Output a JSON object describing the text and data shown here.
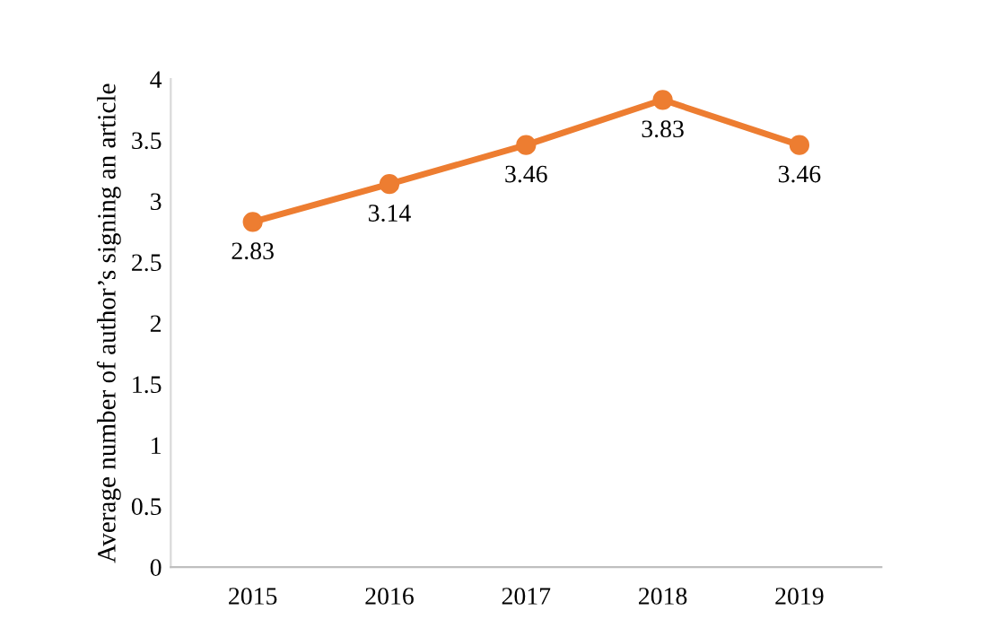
{
  "chart_data": {
    "type": "line",
    "ylabel": "Average number of author’s signing an article",
    "categories": [
      "2015",
      "2016",
      "2017",
      "2018",
      "2019"
    ],
    "series": [
      {
        "color": "#ed7d31",
        "values": [
          2.83,
          3.14,
          3.46,
          3.83,
          3.46
        ]
      }
    ],
    "ylim": [
      0,
      4
    ],
    "yticks": [
      0,
      0.5,
      1,
      1.5,
      2,
      2.5,
      3,
      3.5,
      4
    ],
    "data_labels": true,
    "marker": "circle",
    "line_style": "solid",
    "grid": false,
    "legend": false
  }
}
